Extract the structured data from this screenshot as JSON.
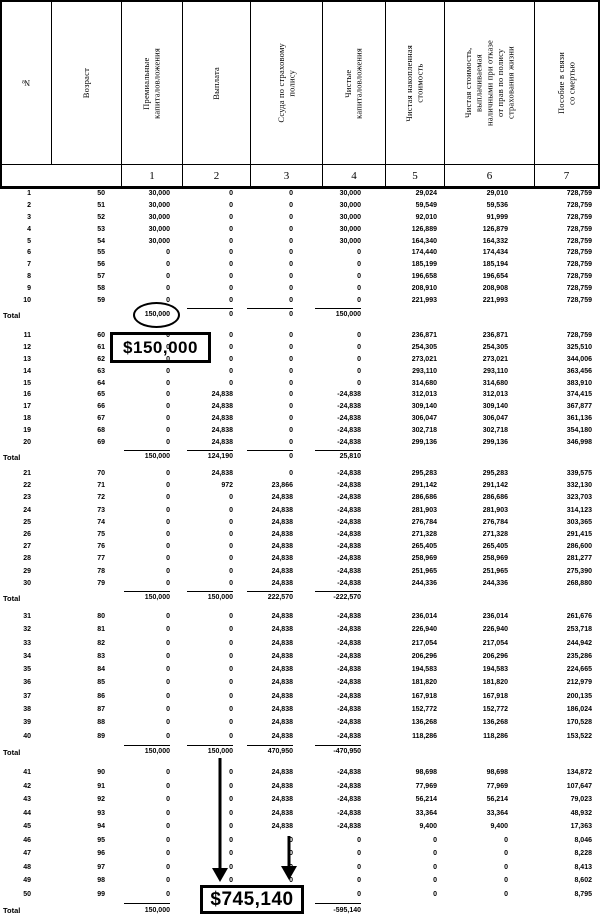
{
  "header": {
    "columns": [
      {
        "label": "№",
        "num": ""
      },
      {
        "label": "Возраст",
        "num": ""
      },
      {
        "label": "Премиальные\nкапиталовложения",
        "num": "1"
      },
      {
        "label": "Выплата",
        "num": "2"
      },
      {
        "label": "Ссуда по страховому\nполису",
        "num": "3"
      },
      {
        "label": "Чистые\nкапиталовложения",
        "num": "4"
      },
      {
        "label": "Чистая накопленная\nстоимость",
        "num": "5"
      },
      {
        "label": "Чистая стоимость,\nвыплачиваемая\nналичными при отказе\nот прав по полису\nстрахования жизни",
        "num": "6"
      },
      {
        "label": "Пособие в связи\nсо смертью",
        "num": "7"
      }
    ]
  },
  "table": {
    "total_label": "Total",
    "groups": [
      {
        "rows": [
          [
            "1",
            "50",
            "30,000",
            "0",
            "0",
            "30,000",
            "29,024",
            "29,010",
            "728,759"
          ],
          [
            "2",
            "51",
            "30,000",
            "0",
            "0",
            "30,000",
            "59,549",
            "59,536",
            "728,759"
          ],
          [
            "3",
            "52",
            "30,000",
            "0",
            "0",
            "30,000",
            "92,010",
            "91,999",
            "728,759"
          ],
          [
            "4",
            "53",
            "30,000",
            "0",
            "0",
            "30,000",
            "126,889",
            "126,879",
            "728,759"
          ],
          [
            "5",
            "54",
            "30,000",
            "0",
            "0",
            "30,000",
            "164,340",
            "164,332",
            "728,759"
          ],
          [
            "6",
            "55",
            "0",
            "0",
            "0",
            "0",
            "174,440",
            "174,434",
            "728,759"
          ],
          [
            "7",
            "56",
            "0",
            "0",
            "0",
            "0",
            "185,199",
            "185,194",
            "728,759"
          ],
          [
            "8",
            "57",
            "0",
            "0",
            "0",
            "0",
            "196,658",
            "196,654",
            "728,759"
          ],
          [
            "9",
            "58",
            "0",
            "0",
            "0",
            "0",
            "208,910",
            "208,908",
            "728,759"
          ],
          [
            "10",
            "59",
            "0",
            "0",
            "0",
            "0",
            "221,993",
            "221,993",
            "728,759"
          ]
        ],
        "totals": [
          "150,000",
          "0",
          "0",
          "150,000"
        ]
      },
      {
        "rows": [
          [
            "11",
            "60",
            "0",
            "0",
            "0",
            "0",
            "236,871",
            "236,871",
            "728,759"
          ],
          [
            "12",
            "61",
            "0",
            "0",
            "0",
            "0",
            "254,305",
            "254,305",
            "325,510"
          ],
          [
            "13",
            "62",
            "0",
            "0",
            "0",
            "0",
            "273,021",
            "273,021",
            "344,006"
          ],
          [
            "14",
            "63",
            "0",
            "0",
            "0",
            "0",
            "293,110",
            "293,110",
            "363,456"
          ],
          [
            "15",
            "64",
            "0",
            "0",
            "0",
            "0",
            "314,680",
            "314,680",
            "383,910"
          ],
          [
            "16",
            "65",
            "0",
            "24,838",
            "0",
            "-24,838",
            "312,013",
            "312,013",
            "374,415"
          ],
          [
            "17",
            "66",
            "0",
            "24,838",
            "0",
            "-24,838",
            "309,140",
            "309,140",
            "367,877"
          ],
          [
            "18",
            "67",
            "0",
            "24,838",
            "0",
            "-24,838",
            "306,047",
            "306,047",
            "361,136"
          ],
          [
            "19",
            "68",
            "0",
            "24,838",
            "0",
            "-24,838",
            "302,718",
            "302,718",
            "354,180"
          ],
          [
            "20",
            "69",
            "0",
            "24,838",
            "0",
            "-24,838",
            "299,136",
            "299,136",
            "346,998"
          ]
        ],
        "totals": [
          "150,000",
          "124,190",
          "0",
          "25,810"
        ]
      },
      {
        "rows": [
          [
            "21",
            "70",
            "0",
            "24,838",
            "0",
            "-24,838",
            "295,283",
            "295,283",
            "339,575"
          ],
          [
            "22",
            "71",
            "0",
            "972",
            "23,866",
            "-24,838",
            "291,142",
            "291,142",
            "332,130"
          ],
          [
            "23",
            "72",
            "0",
            "0",
            "24,838",
            "-24,838",
            "286,686",
            "286,686",
            "323,703"
          ],
          [
            "24",
            "73",
            "0",
            "0",
            "24,838",
            "-24,838",
            "281,903",
            "281,903",
            "314,123"
          ],
          [
            "25",
            "74",
            "0",
            "0",
            "24,838",
            "-24,838",
            "276,784",
            "276,784",
            "303,365"
          ],
          [
            "26",
            "75",
            "0",
            "0",
            "24,838",
            "-24,838",
            "271,328",
            "271,328",
            "291,415"
          ],
          [
            "27",
            "76",
            "0",
            "0",
            "24,838",
            "-24,838",
            "265,405",
            "265,405",
            "286,600"
          ],
          [
            "28",
            "77",
            "0",
            "0",
            "24,838",
            "-24,838",
            "258,969",
            "258,969",
            "281,277"
          ],
          [
            "29",
            "78",
            "0",
            "0",
            "24,838",
            "-24,838",
            "251,965",
            "251,965",
            "275,390"
          ],
          [
            "30",
            "79",
            "0",
            "0",
            "24,838",
            "-24,838",
            "244,336",
            "244,336",
            "268,880"
          ]
        ],
        "totals": [
          "150,000",
          "150,000",
          "222,570",
          "-222,570"
        ]
      },
      {
        "rows": [
          [
            "31",
            "80",
            "0",
            "0",
            "24,838",
            "-24,838",
            "236,014",
            "236,014",
            "261,676"
          ],
          [
            "32",
            "81",
            "0",
            "0",
            "24,838",
            "-24,838",
            "226,940",
            "226,940",
            "253,718"
          ],
          [
            "33",
            "82",
            "0",
            "0",
            "24,838",
            "-24,838",
            "217,054",
            "217,054",
            "244,942"
          ],
          [
            "34",
            "83",
            "0",
            "0",
            "24,838",
            "-24,838",
            "206,296",
            "206,296",
            "235,286"
          ],
          [
            "35",
            "84",
            "0",
            "0",
            "24,838",
            "-24,838",
            "194,583",
            "194,583",
            "224,665"
          ],
          [
            "36",
            "85",
            "0",
            "0",
            "24,838",
            "-24,838",
            "181,820",
            "181,820",
            "212,979"
          ],
          [
            "37",
            "86",
            "0",
            "0",
            "24,838",
            "-24,838",
            "167,918",
            "167,918",
            "200,135"
          ],
          [
            "38",
            "87",
            "0",
            "0",
            "24,838",
            "-24,838",
            "152,772",
            "152,772",
            "186,024"
          ],
          [
            "39",
            "88",
            "0",
            "0",
            "24,838",
            "-24,838",
            "136,268",
            "136,268",
            "170,528"
          ],
          [
            "40",
            "89",
            "0",
            "0",
            "24,838",
            "-24,838",
            "118,286",
            "118,286",
            "153,522"
          ]
        ],
        "totals": [
          "150,000",
          "150,000",
          "470,950",
          "-470,950"
        ]
      },
      {
        "rows": [
          [
            "41",
            "90",
            "0",
            "0",
            "24,838",
            "-24,838",
            "98,698",
            "98,698",
            "134,872"
          ],
          [
            "42",
            "91",
            "0",
            "0",
            "24,838",
            "-24,838",
            "77,969",
            "77,969",
            "107,647"
          ],
          [
            "43",
            "92",
            "0",
            "0",
            "24,838",
            "-24,838",
            "56,214",
            "56,214",
            "79,023"
          ],
          [
            "44",
            "93",
            "0",
            "0",
            "24,838",
            "-24,838",
            "33,364",
            "33,364",
            "48,932"
          ],
          [
            "45",
            "94",
            "0",
            "0",
            "24,838",
            "-24,838",
            "9,400",
            "9,400",
            "17,363"
          ],
          [
            "46",
            "95",
            "0",
            "0",
            "0",
            "0",
            "0",
            "0",
            "8,046"
          ],
          [
            "47",
            "96",
            "0",
            "0",
            "0",
            "0",
            "0",
            "0",
            "8,228"
          ],
          [
            "48",
            "97",
            "0",
            "0",
            "0",
            "0",
            "0",
            "0",
            "8,413"
          ],
          [
            "49",
            "98",
            "0",
            "0",
            "0",
            "0",
            "0",
            "0",
            "8,602"
          ],
          [
            "50",
            "99",
            "0",
            "0",
            "0",
            "0",
            "0",
            "0",
            "8,795"
          ]
        ],
        "totals": [
          "150,000",
          "",
          "",
          "-595,140"
        ]
      }
    ]
  },
  "annotations": {
    "box1_label": "$150,000",
    "box2_label": "$745,140"
  }
}
